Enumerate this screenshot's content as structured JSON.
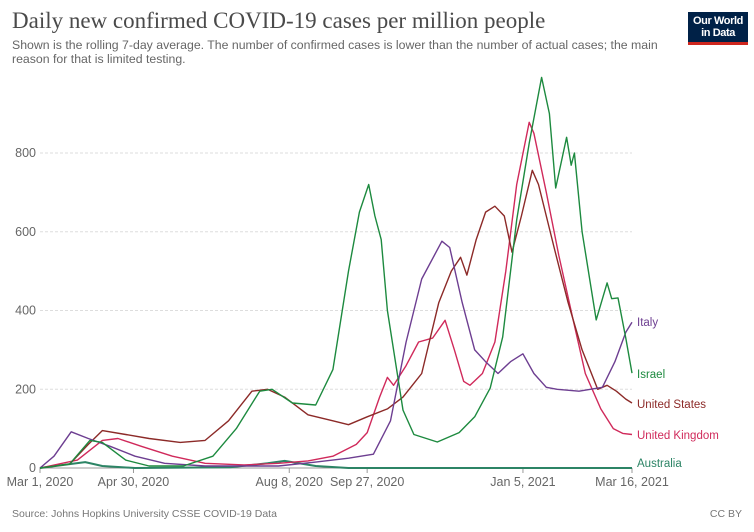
{
  "header": {
    "title": "Daily new confirmed COVID-19 cases per million people",
    "subtitle": "Shown is the rolling 7-day average. The number of confirmed cases is lower than the number of actual cases; the main reason for that is limited testing.",
    "logo_text": "Our World in Data"
  },
  "footer": {
    "source": "Source: Johns Hopkins University CSSE COVID-19 Data",
    "license": "CC BY"
  },
  "chart_data": {
    "type": "line",
    "title": "Daily new confirmed COVID-19 cases per million people",
    "xlabel": "",
    "ylabel": "",
    "xlim": [
      "2020-03-01",
      "2021-03-16"
    ],
    "ylim": [
      0,
      1000
    ],
    "grid": true,
    "legend": "right (line-end labels)",
    "y_ticks": [
      0,
      200,
      400,
      600,
      800
    ],
    "x_ticks": [
      {
        "date": "2020-03-01",
        "label": "Mar 1, 2020"
      },
      {
        "date": "2020-04-30",
        "label": "Apr 30, 2020"
      },
      {
        "date": "2020-08-08",
        "label": "Aug 8, 2020"
      },
      {
        "date": "2020-09-27",
        "label": "Sep 27, 2020"
      },
      {
        "date": "2021-01-05",
        "label": "Jan 5, 2021"
      },
      {
        "date": "2021-03-16",
        "label": "Mar 16, 2021"
      }
    ],
    "series": [
      {
        "name": "Italy",
        "color": "#6d3e91",
        "points": [
          [
            "2020-03-01",
            0
          ],
          [
            "2020-03-10",
            30
          ],
          [
            "2020-03-21",
            92
          ],
          [
            "2020-04-01",
            75
          ],
          [
            "2020-04-15",
            55
          ],
          [
            "2020-05-01",
            30
          ],
          [
            "2020-05-20",
            12
          ],
          [
            "2020-06-15",
            5
          ],
          [
            "2020-08-01",
            5
          ],
          [
            "2020-08-25",
            15
          ],
          [
            "2020-09-15",
            25
          ],
          [
            "2020-10-01",
            35
          ],
          [
            "2020-10-12",
            120
          ],
          [
            "2020-10-22",
            320
          ],
          [
            "2020-11-01",
            480
          ],
          [
            "2020-11-14",
            576
          ],
          [
            "2020-11-19",
            560
          ],
          [
            "2020-11-27",
            420
          ],
          [
            "2020-12-05",
            300
          ],
          [
            "2020-12-12",
            270
          ],
          [
            "2020-12-20",
            240
          ],
          [
            "2020-12-28",
            270
          ],
          [
            "2021-01-05",
            290
          ],
          [
            "2021-01-12",
            240
          ],
          [
            "2021-01-20",
            205
          ],
          [
            "2021-01-27",
            200
          ],
          [
            "2021-02-10",
            195
          ],
          [
            "2021-02-25",
            205
          ],
          [
            "2021-03-05",
            270
          ],
          [
            "2021-03-12",
            345
          ],
          [
            "2021-03-16",
            370
          ]
        ]
      },
      {
        "name": "Israel",
        "color": "#1d8a3f",
        "points": [
          [
            "2020-03-01",
            0
          ],
          [
            "2020-03-20",
            10
          ],
          [
            "2020-04-02",
            70
          ],
          [
            "2020-04-10",
            65
          ],
          [
            "2020-04-25",
            20
          ],
          [
            "2020-05-10",
            5
          ],
          [
            "2020-06-01",
            5
          ],
          [
            "2020-06-20",
            30
          ],
          [
            "2020-07-05",
            100
          ],
          [
            "2020-07-20",
            195
          ],
          [
            "2020-07-28",
            200
          ],
          [
            "2020-08-10",
            165
          ],
          [
            "2020-08-25",
            160
          ],
          [
            "2020-09-05",
            250
          ],
          [
            "2020-09-15",
            500
          ],
          [
            "2020-09-22",
            650
          ],
          [
            "2020-09-28",
            720
          ],
          [
            "2020-10-02",
            640
          ],
          [
            "2020-10-06",
            580
          ],
          [
            "2020-10-10",
            400
          ],
          [
            "2020-10-20",
            147
          ],
          [
            "2020-10-27",
            85
          ],
          [
            "2020-11-11",
            66
          ],
          [
            "2020-11-25",
            90
          ],
          [
            "2020-12-05",
            130
          ],
          [
            "2020-12-15",
            203
          ],
          [
            "2020-12-23",
            333
          ],
          [
            "2021-01-01",
            630
          ],
          [
            "2021-01-09",
            825
          ],
          [
            "2021-01-17",
            992
          ],
          [
            "2021-01-22",
            900
          ],
          [
            "2021-01-26",
            711
          ],
          [
            "2021-02-02",
            840
          ],
          [
            "2021-02-05",
            769
          ],
          [
            "2021-02-07",
            800
          ],
          [
            "2021-02-12",
            600
          ],
          [
            "2021-02-21",
            376
          ],
          [
            "2021-02-28",
            470
          ],
          [
            "2021-03-03",
            430
          ],
          [
            "2021-03-07",
            432
          ],
          [
            "2021-03-12",
            330
          ],
          [
            "2021-03-16",
            241
          ]
        ]
      },
      {
        "name": "United States",
        "color": "#8c2a28",
        "points": [
          [
            "2020-03-01",
            0
          ],
          [
            "2020-03-20",
            10
          ],
          [
            "2020-04-01",
            60
          ],
          [
            "2020-04-10",
            95
          ],
          [
            "2020-04-25",
            85
          ],
          [
            "2020-05-10",
            75
          ],
          [
            "2020-05-30",
            65
          ],
          [
            "2020-06-15",
            70
          ],
          [
            "2020-06-30",
            120
          ],
          [
            "2020-07-15",
            195
          ],
          [
            "2020-07-25",
            200
          ],
          [
            "2020-08-05",
            180
          ],
          [
            "2020-08-20",
            135
          ],
          [
            "2020-09-05",
            120
          ],
          [
            "2020-09-15",
            110
          ],
          [
            "2020-09-27",
            130
          ],
          [
            "2020-10-10",
            150
          ],
          [
            "2020-10-20",
            180
          ],
          [
            "2020-11-01",
            240
          ],
          [
            "2020-11-12",
            420
          ],
          [
            "2020-11-20",
            500
          ],
          [
            "2020-11-26",
            535
          ],
          [
            "2020-11-30",
            490
          ],
          [
            "2020-12-06",
            580
          ],
          [
            "2020-12-12",
            650
          ],
          [
            "2020-12-18",
            665
          ],
          [
            "2020-12-24",
            640
          ],
          [
            "2020-12-29",
            548
          ],
          [
            "2021-01-04",
            640
          ],
          [
            "2021-01-11",
            756
          ],
          [
            "2021-01-15",
            720
          ],
          [
            "2021-01-25",
            560
          ],
          [
            "2021-02-03",
            420
          ],
          [
            "2021-02-12",
            300
          ],
          [
            "2021-02-22",
            200
          ],
          [
            "2021-02-28",
            210
          ],
          [
            "2021-03-06",
            195
          ],
          [
            "2021-03-12",
            175
          ],
          [
            "2021-03-16",
            165
          ]
        ]
      },
      {
        "name": "United Kingdom",
        "color": "#d02a5b",
        "points": [
          [
            "2020-03-01",
            0
          ],
          [
            "2020-03-25",
            20
          ],
          [
            "2020-04-10",
            70
          ],
          [
            "2020-04-20",
            75
          ],
          [
            "2020-05-05",
            55
          ],
          [
            "2020-05-25",
            30
          ],
          [
            "2020-06-15",
            12
          ],
          [
            "2020-07-10",
            8
          ],
          [
            "2020-08-01",
            12
          ],
          [
            "2020-08-20",
            18
          ],
          [
            "2020-09-05",
            30
          ],
          [
            "2020-09-20",
            60
          ],
          [
            "2020-09-27",
            90
          ],
          [
            "2020-10-05",
            180
          ],
          [
            "2020-10-10",
            230
          ],
          [
            "2020-10-14",
            210
          ],
          [
            "2020-10-22",
            260
          ],
          [
            "2020-10-30",
            320
          ],
          [
            "2020-11-08",
            330
          ],
          [
            "2020-11-16",
            375
          ],
          [
            "2020-11-22",
            300
          ],
          [
            "2020-11-28",
            220
          ],
          [
            "2020-12-02",
            210
          ],
          [
            "2020-12-10",
            240
          ],
          [
            "2020-12-18",
            320
          ],
          [
            "2020-12-25",
            500
          ],
          [
            "2021-01-01",
            720
          ],
          [
            "2021-01-09",
            878
          ],
          [
            "2021-01-12",
            850
          ],
          [
            "2021-01-20",
            700
          ],
          [
            "2021-01-28",
            540
          ],
          [
            "2021-02-06",
            380
          ],
          [
            "2021-02-14",
            240
          ],
          [
            "2021-02-24",
            150
          ],
          [
            "2021-03-04",
            100
          ],
          [
            "2021-03-10",
            88
          ],
          [
            "2021-03-16",
            85
          ]
        ]
      },
      {
        "name": "Australia",
        "color": "#2c8465",
        "points": [
          [
            "2020-03-01",
            0
          ],
          [
            "2020-03-20",
            10
          ],
          [
            "2020-03-30",
            15
          ],
          [
            "2020-04-10",
            5
          ],
          [
            "2020-05-01",
            0
          ],
          [
            "2020-07-01",
            2
          ],
          [
            "2020-07-25",
            12
          ],
          [
            "2020-08-05",
            18
          ],
          [
            "2020-08-25",
            5
          ],
          [
            "2020-09-15",
            0
          ],
          [
            "2021-03-16",
            0
          ]
        ]
      }
    ]
  }
}
